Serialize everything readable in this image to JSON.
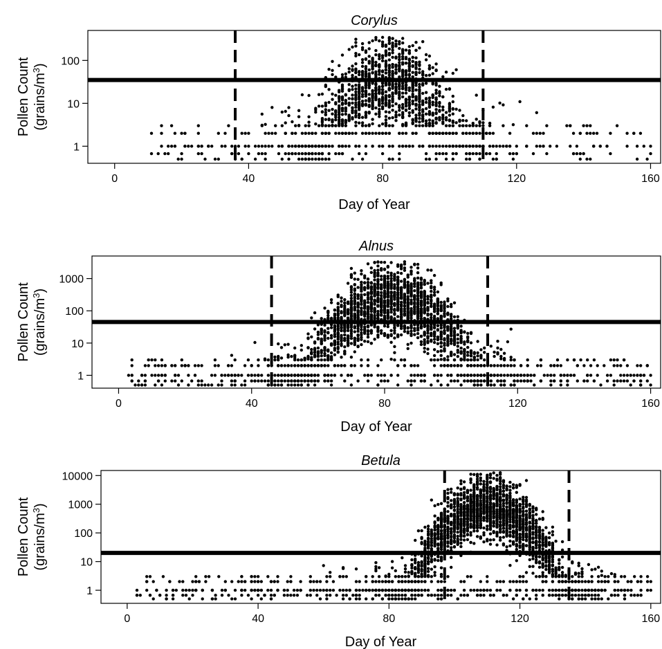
{
  "chart_data": [
    {
      "type": "scatter",
      "title": "Corylus",
      "xlabel": "Day of Year",
      "ylabel": [
        "Pollen Count",
        "(grains/m",
        "3",
        ")"
      ],
      "xlim": [
        -8,
        163
      ],
      "ylim": [
        0.4,
        500
      ],
      "yscale": "log",
      "xticks": [
        0,
        40,
        80,
        120,
        160
      ],
      "yticks": [
        1,
        10,
        100
      ],
      "yticklabels": [
        "1",
        "10",
        "100"
      ],
      "threshold": 35,
      "season_start": 36,
      "season_end": 110,
      "season_peak": 82,
      "season_spread": 10,
      "n_points": 1600,
      "early_start": 10,
      "max_log10": 2.55,
      "peak_log10": 1.5
    },
    {
      "type": "scatter",
      "title": "Alnus",
      "xlabel": "Day of Year",
      "ylabel": [
        "Pollen Count",
        "(grains/m",
        "3",
        ")"
      ],
      "xlim": [
        -8,
        163
      ],
      "ylim": [
        0.4,
        5000
      ],
      "yscale": "log",
      "xticks": [
        0,
        40,
        80,
        120,
        160
      ],
      "yticks": [
        1,
        10,
        100,
        1000
      ],
      "yticklabels": [
        "1",
        "10",
        "100",
        "1000"
      ],
      "threshold": 45,
      "season_start": 46,
      "season_end": 111,
      "season_peak": 82,
      "season_spread": 12,
      "n_points": 2600,
      "early_start": 3,
      "max_log10": 3.55,
      "peak_log10": 2.3
    },
    {
      "type": "scatter",
      "title": "Betula",
      "xlabel": "Day of Year",
      "ylabel": [
        "Pollen Count",
        "(grains/m",
        "3",
        ")"
      ],
      "xlim": [
        -8,
        163
      ],
      "ylim": [
        0.35,
        15000
      ],
      "yscale": "log",
      "xticks": [
        0,
        40,
        80,
        120,
        160
      ],
      "yticks": [
        1,
        10,
        100,
        1000,
        10000
      ],
      "yticklabels": [
        "1",
        "10",
        "100",
        "1000",
        "10000"
      ],
      "threshold": 20,
      "season_start": 97,
      "season_end": 135,
      "season_peak": 110,
      "season_spread": 11,
      "n_points": 2700,
      "early_start": 3,
      "max_log10": 4.1,
      "peak_log10": 2.9
    }
  ]
}
